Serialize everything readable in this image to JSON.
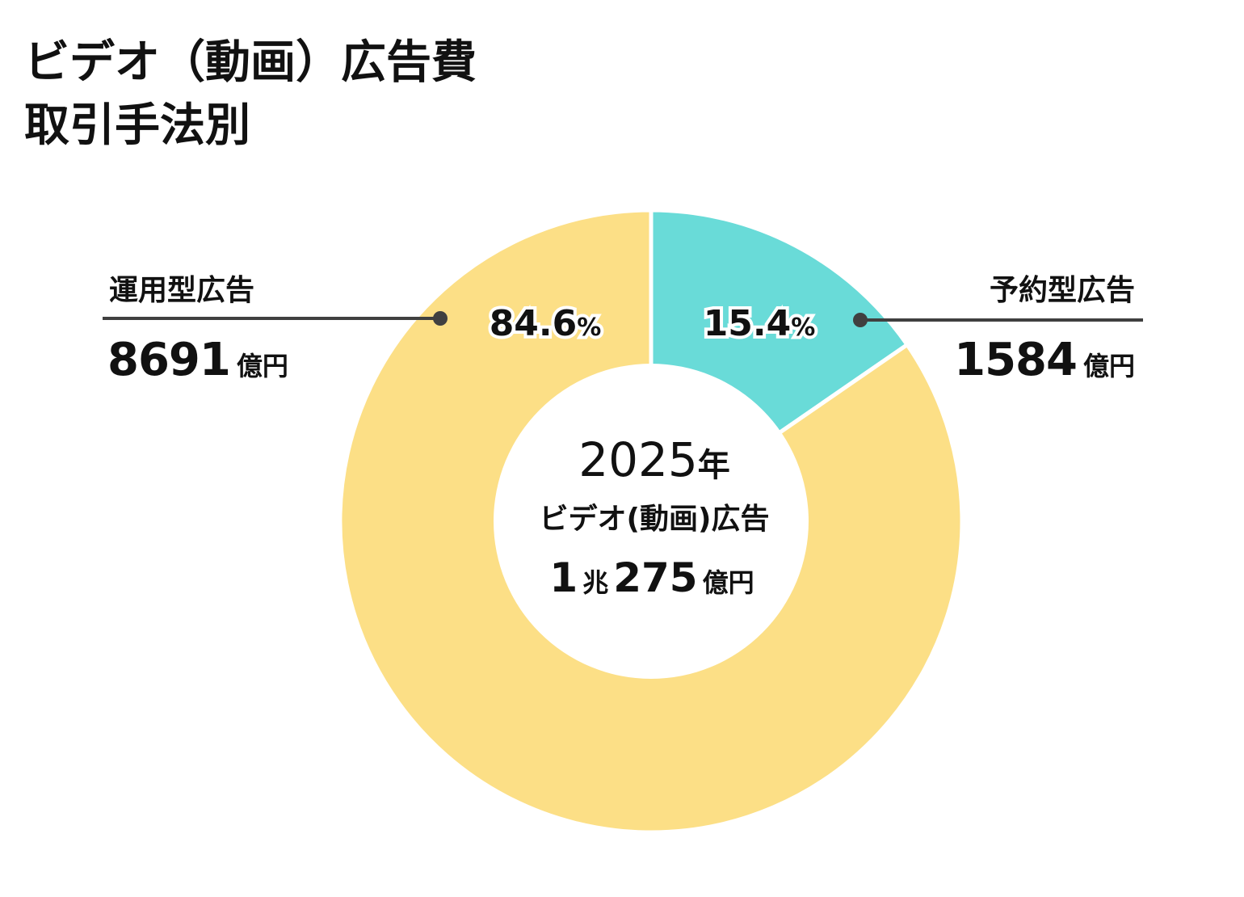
{
  "title": {
    "line1": "ビデオ（動画）広告費",
    "line2": "取引手法別"
  },
  "center": {
    "year": "2025",
    "year_unit": "年",
    "label": "ビデオ(動画)広告",
    "total_num1": "1",
    "total_unit1": "兆",
    "total_num2": "275",
    "total_unit2": "億円"
  },
  "labels": {
    "left": {
      "name": "運用型広告",
      "amount": "8691",
      "unit": "億円"
    },
    "right": {
      "name": "予約型広告",
      "amount": "1584",
      "unit": "億円"
    }
  },
  "colors": {
    "operated": "#FCDF86",
    "reserved": "#69DBD8",
    "leader": "#404040"
  },
  "chart_data": {
    "type": "pie",
    "subtype": "donut",
    "title": "ビデオ（動画）広告費 取引手法別",
    "categories": [
      "予約型広告",
      "運用型広告"
    ],
    "values": [
      15.4,
      84.6
    ],
    "value_labels": [
      "15.4%",
      "84.6%"
    ],
    "amounts": [
      1584,
      8691
    ],
    "amount_unit": "億円",
    "total": "1兆275億円",
    "year": "2025年"
  }
}
